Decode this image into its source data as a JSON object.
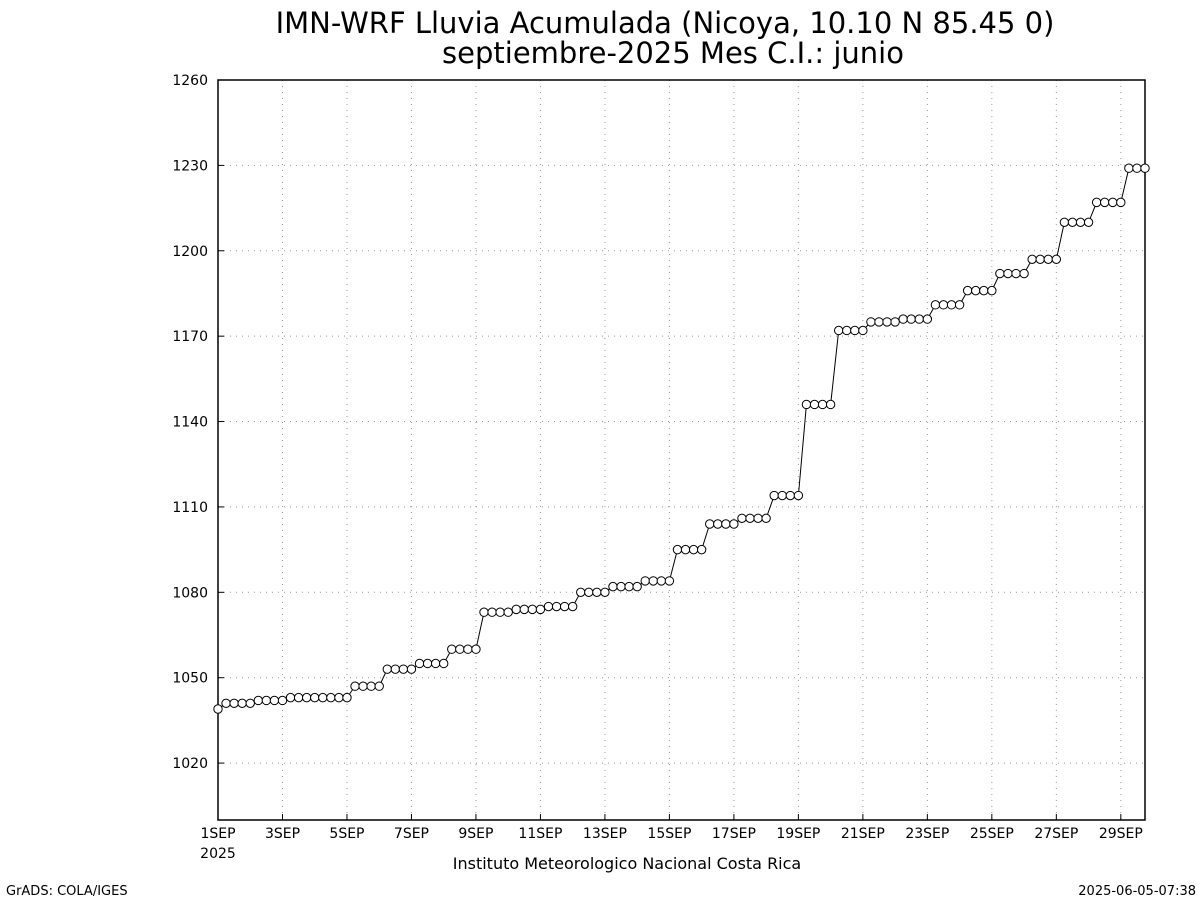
{
  "chart_data": {
    "type": "line",
    "title": "IMN-WRF  Lluvia Acumulada  (Nicoya, 10.10  N 85.45  0)",
    "subtitle": "septiembre-2025 Mes C.I.: junio",
    "x_year_label": "2025",
    "footer": "Instituto Meteorologico Nacional Costa Rica",
    "credit": "GrADS: COLA/IGES",
    "timestamp": "2025-06-05-07:38",
    "color": "#000000",
    "marker": "open-circle",
    "grid": true,
    "xlim": [
      1,
      29.75
    ],
    "ylim": [
      1000,
      1260
    ],
    "yticks": [
      1020,
      1050,
      1080,
      1110,
      1140,
      1170,
      1200,
      1230,
      1260
    ],
    "xticks": [
      {
        "value": 1,
        "label": "1SEP"
      },
      {
        "value": 3,
        "label": "3SEP"
      },
      {
        "value": 5,
        "label": "5SEP"
      },
      {
        "value": 7,
        "label": "7SEP"
      },
      {
        "value": 9,
        "label": "9SEP"
      },
      {
        "value": 11,
        "label": "11SEP"
      },
      {
        "value": 13,
        "label": "13SEP"
      },
      {
        "value": 15,
        "label": "15SEP"
      },
      {
        "value": 17,
        "label": "17SEP"
      },
      {
        "value": 19,
        "label": "19SEP"
      },
      {
        "value": 21,
        "label": "21SEP"
      },
      {
        "value": 23,
        "label": "23SEP"
      },
      {
        "value": 25,
        "label": "25SEP"
      },
      {
        "value": 27,
        "label": "27SEP"
      },
      {
        "value": 29,
        "label": "29SEP"
      }
    ],
    "x": [
      1,
      1.25,
      1.5,
      1.75,
      2,
      2.25,
      2.5,
      2.75,
      3,
      3.25,
      3.5,
      3.75,
      4,
      4.25,
      4.5,
      4.75,
      5,
      5.25,
      5.5,
      5.75,
      6,
      6.25,
      6.5,
      6.75,
      7,
      7.25,
      7.5,
      7.75,
      8,
      8.25,
      8.5,
      8.75,
      9,
      9.25,
      9.5,
      9.75,
      10,
      10.25,
      10.5,
      10.75,
      11,
      11.25,
      11.5,
      11.75,
      12,
      12.25,
      12.5,
      12.75,
      13,
      13.25,
      13.5,
      13.75,
      14,
      14.25,
      14.5,
      14.75,
      15,
      15.25,
      15.5,
      15.75,
      16,
      16.25,
      16.5,
      16.75,
      17,
      17.25,
      17.5,
      17.75,
      18,
      18.25,
      18.5,
      18.75,
      19,
      19.25,
      19.5,
      19.75,
      20,
      20.25,
      20.5,
      20.75,
      21,
      21.25,
      21.5,
      21.75,
      22,
      22.25,
      22.5,
      22.75,
      23,
      23.25,
      23.5,
      23.75,
      24,
      24.25,
      24.5,
      24.75,
      25,
      25.25,
      25.5,
      25.75,
      26,
      26.25,
      26.5,
      26.75,
      27,
      27.25,
      27.5,
      27.75,
      28,
      28.25,
      28.5,
      28.75,
      29,
      29.25,
      29.5,
      29.75
    ],
    "values": [
      1039,
      1041,
      1041,
      1041,
      1041,
      1042,
      1042,
      1042,
      1042,
      1043,
      1043,
      1043,
      1043,
      1043,
      1043,
      1043,
      1043,
      1047,
      1047,
      1047,
      1047,
      1053,
      1053,
      1053,
      1053,
      1055,
      1055,
      1055,
      1055,
      1060,
      1060,
      1060,
      1060,
      1073,
      1073,
      1073,
      1073,
      1074,
      1074,
      1074,
      1074,
      1075,
      1075,
      1075,
      1075,
      1080,
      1080,
      1080,
      1080,
      1082,
      1082,
      1082,
      1082,
      1084,
      1084,
      1084,
      1084,
      1095,
      1095,
      1095,
      1095,
      1104,
      1104,
      1104,
      1104,
      1106,
      1106,
      1106,
      1106,
      1114,
      1114,
      1114,
      1114,
      1146,
      1146,
      1146,
      1146,
      1172,
      1172,
      1172,
      1172,
      1175,
      1175,
      1175,
      1175,
      1176,
      1176,
      1176,
      1176,
      1181,
      1181,
      1181,
      1181,
      1186,
      1186,
      1186,
      1186,
      1192,
      1192,
      1192,
      1192,
      1197,
      1197,
      1197,
      1197,
      1210,
      1210,
      1210,
      1210,
      1217,
      1217,
      1217,
      1217,
      1229,
      1229,
      1229
    ]
  }
}
